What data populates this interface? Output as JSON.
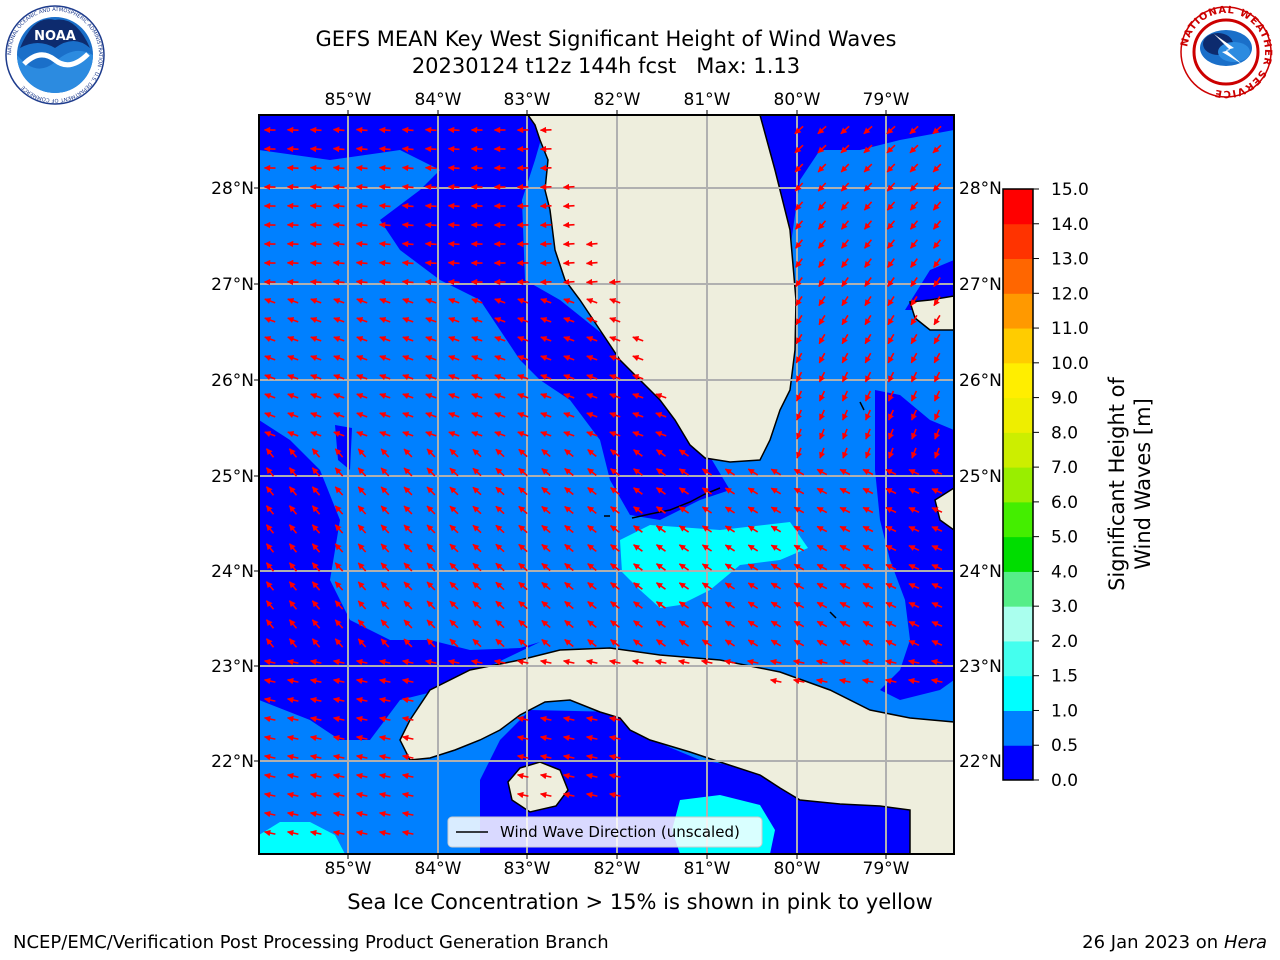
{
  "title": {
    "line1": "GEFS MEAN Key West Significant Height of Wind Waves",
    "line2": "20230124 t12z 144h fcst   Max: 1.13"
  },
  "subtitle": "Sea Ice Concentration > 15% is shown in pink to yellow",
  "footer": {
    "left": "NCEP/EMC/Verification Post Processing Product Generation Branch",
    "right_date": "26 Jan 2023 on ",
    "right_host": "Hera"
  },
  "logos": {
    "left": {
      "text": "NOAA",
      "ring_text": "NATIONAL OCEANIC AND ATMOSPHERIC ADMINISTRATION · U.S. DEPARTMENT OF COMMERCE"
    },
    "right": {
      "ring_text": "NATIONAL WEATHER SERVICE"
    }
  },
  "map": {
    "lon_labels": [
      "85°W",
      "84°W",
      "83°W",
      "82°W",
      "81°W",
      "80°W",
      "79°W"
    ],
    "lat_labels": [
      "28°N",
      "27°N",
      "26°N",
      "25°N",
      "24°N",
      "23°N",
      "22°N"
    ],
    "legend_label": "Wind Wave Direction (unscaled)",
    "land_color": "#eeeedd",
    "coast_color": "#000000",
    "arrow_color": "#ff0000",
    "grid_color": "#b0b0b0"
  },
  "colorbar": {
    "label": "Significant Height of Wind Waves [m]",
    "ticks": [
      "0.0",
      "0.5",
      "1.0",
      "1.5",
      "2.0",
      "3.0",
      "4.0",
      "5.0",
      "6.0",
      "7.0",
      "8.0",
      "9.0",
      "10.0",
      "11.0",
      "12.0",
      "13.0",
      "14.0",
      "15.0"
    ],
    "colors": [
      "#0000ff",
      "#0080ff",
      "#00ffff",
      "#44ffee",
      "#aaffee",
      "#55ee88",
      "#00dd00",
      "#44ee00",
      "#99ee00",
      "#ccee00",
      "#eeee00",
      "#ffee00",
      "#ffcc00",
      "#ff9900",
      "#ff6600",
      "#ff3300",
      "#ff0000"
    ]
  }
}
